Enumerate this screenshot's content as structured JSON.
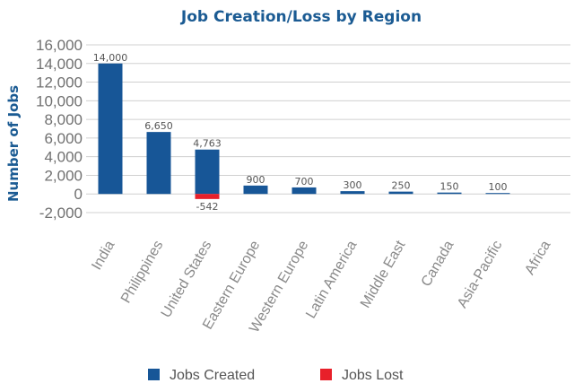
{
  "chart_data": {
    "type": "bar",
    "title": "Job Creation/Loss by Region",
    "xlabel": "",
    "ylabel": "Number of Jobs",
    "ylim": [
      -2000,
      16000
    ],
    "yticks": [
      16000,
      14000,
      12000,
      10000,
      8000,
      6000,
      4000,
      2000,
      0,
      -2000
    ],
    "ytick_labels": [
      "16,000",
      "14,000",
      "12,000",
      "10,000",
      "8,000",
      "6,000",
      "4,000",
      "2,000",
      "0",
      "-2,000"
    ],
    "grid": true,
    "legend_position": "bottom",
    "categories": [
      "India",
      "Philippines",
      "United States",
      "Eastern Europe",
      "Western Europe",
      "Latin America",
      "Middle East",
      "Canada",
      "Asia-Pacific",
      "Africa"
    ],
    "series": [
      {
        "name": "Jobs Created",
        "color": "#175697",
        "values": [
          14000,
          6650,
          4763,
          900,
          700,
          300,
          250,
          150,
          100,
          0
        ],
        "labels": [
          "14,000",
          "6,650",
          "4,763",
          "900",
          "700",
          "300",
          "250",
          "150",
          "100",
          ""
        ]
      },
      {
        "name": "Jobs Lost",
        "color": "#e8202a",
        "values": [
          0,
          0,
          -542,
          0,
          0,
          0,
          0,
          0,
          0,
          0
        ],
        "labels": [
          "",
          "",
          "-542",
          "",
          "",
          "",
          "",
          "",
          "",
          ""
        ]
      }
    ]
  }
}
